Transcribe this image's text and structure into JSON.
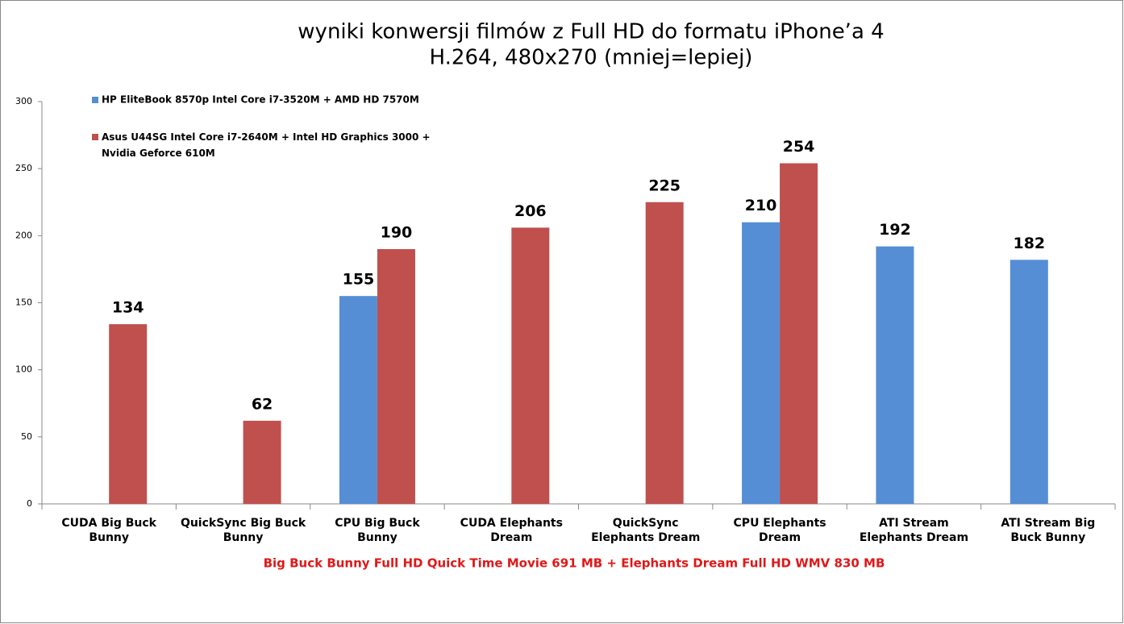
{
  "chart_data": {
    "type": "bar",
    "title": "wyniki konwersji filmów z Full HD do formatu iPhone’a 4",
    "subtitle": "H.264, 480x270 (mniej=lepiej)",
    "x_label": "Big Buck Bunny Full HD Quick Time Movie 691 MB + Elephants Dream Full HD WMV 830 MB",
    "categories": [
      "CUDA Big Buck Bunny",
      "QuickSync Big Buck Bunny",
      "CPU Big Buck Bunny",
      "CUDA Elephants Dream",
      "QuickSync Elephants Dream",
      "CPU Elephants Dream",
      "ATI Stream Elephants Dream",
      "ATI Stream Big Buck Bunny"
    ],
    "series": [
      {
        "name": "HP EliteBook 8570p Intel Core i7-3520M + AMD HD 7570M",
        "color": "#558ed5",
        "values": [
          null,
          null,
          155,
          null,
          null,
          210,
          192,
          182
        ]
      },
      {
        "name": "Asus U44SG Intel Core i7-2640M + Intel HD Graphics 3000 + Nvidia Geforce 610M",
        "color": "#c0504d",
        "values": [
          134,
          62,
          190,
          206,
          225,
          254,
          null,
          null
        ]
      }
    ],
    "ylim": [
      0,
      300
    ],
    "yticks": [
      0,
      50,
      100,
      150,
      200,
      250,
      300
    ],
    "legend": "top-left"
  }
}
